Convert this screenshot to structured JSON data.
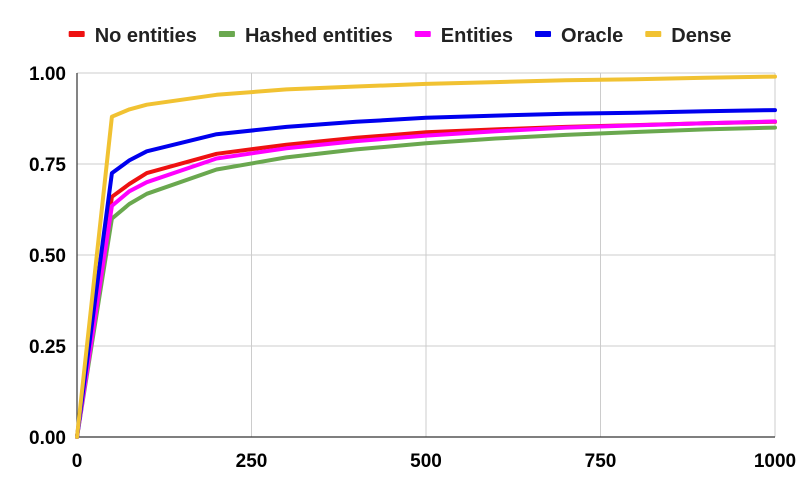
{
  "chart_data": {
    "type": "line",
    "title": "",
    "xlabel": "",
    "ylabel": "",
    "xlim": [
      0,
      1000
    ],
    "ylim": [
      0,
      1
    ],
    "x_ticks": [
      "0",
      "250",
      "500",
      "750",
      "1000"
    ],
    "y_ticks": [
      "0.00",
      "0.25",
      "0.50",
      "0.75",
      "1.00"
    ],
    "grid": true,
    "legend_position": "top",
    "series": [
      {
        "name": "No entities",
        "color": "#ee1111",
        "points": [
          [
            0,
            0
          ],
          [
            50,
            0.66
          ],
          [
            75,
            0.695
          ],
          [
            100,
            0.725
          ],
          [
            200,
            0.778
          ],
          [
            300,
            0.803
          ],
          [
            400,
            0.822
          ],
          [
            500,
            0.837
          ],
          [
            600,
            0.845
          ],
          [
            700,
            0.852
          ],
          [
            800,
            0.857
          ],
          [
            900,
            0.862
          ],
          [
            1000,
            0.866
          ]
        ]
      },
      {
        "name": "Hashed entities",
        "color": "#6aa84f",
        "points": [
          [
            0,
            0
          ],
          [
            50,
            0.6
          ],
          [
            75,
            0.64
          ],
          [
            100,
            0.668
          ],
          [
            200,
            0.735
          ],
          [
            300,
            0.768
          ],
          [
            400,
            0.79
          ],
          [
            500,
            0.807
          ],
          [
            600,
            0.82
          ],
          [
            700,
            0.83
          ],
          [
            800,
            0.838
          ],
          [
            900,
            0.845
          ],
          [
            1000,
            0.85
          ]
        ]
      },
      {
        "name": "Entities",
        "color": "#ff00ff",
        "points": [
          [
            0,
            0
          ],
          [
            50,
            0.635
          ],
          [
            75,
            0.675
          ],
          [
            100,
            0.7
          ],
          [
            200,
            0.765
          ],
          [
            300,
            0.793
          ],
          [
            400,
            0.813
          ],
          [
            500,
            0.828
          ],
          [
            600,
            0.84
          ],
          [
            700,
            0.85
          ],
          [
            800,
            0.856
          ],
          [
            900,
            0.862
          ],
          [
            1000,
            0.867
          ]
        ]
      },
      {
        "name": "Oracle",
        "color": "#0000ee",
        "points": [
          [
            0,
            0
          ],
          [
            50,
            0.725
          ],
          [
            75,
            0.76
          ],
          [
            100,
            0.785
          ],
          [
            200,
            0.832
          ],
          [
            300,
            0.852
          ],
          [
            400,
            0.866
          ],
          [
            500,
            0.877
          ],
          [
            600,
            0.883
          ],
          [
            700,
            0.888
          ],
          [
            800,
            0.891
          ],
          [
            900,
            0.895
          ],
          [
            1000,
            0.898
          ]
        ]
      },
      {
        "name": "Dense",
        "color": "#f1c232",
        "points": [
          [
            0,
            0
          ],
          [
            50,
            0.88
          ],
          [
            75,
            0.9
          ],
          [
            100,
            0.913
          ],
          [
            200,
            0.94
          ],
          [
            300,
            0.955
          ],
          [
            400,
            0.963
          ],
          [
            500,
            0.97
          ],
          [
            600,
            0.975
          ],
          [
            700,
            0.98
          ],
          [
            800,
            0.983
          ],
          [
            900,
            0.987
          ],
          [
            1000,
            0.99
          ]
        ]
      }
    ]
  }
}
